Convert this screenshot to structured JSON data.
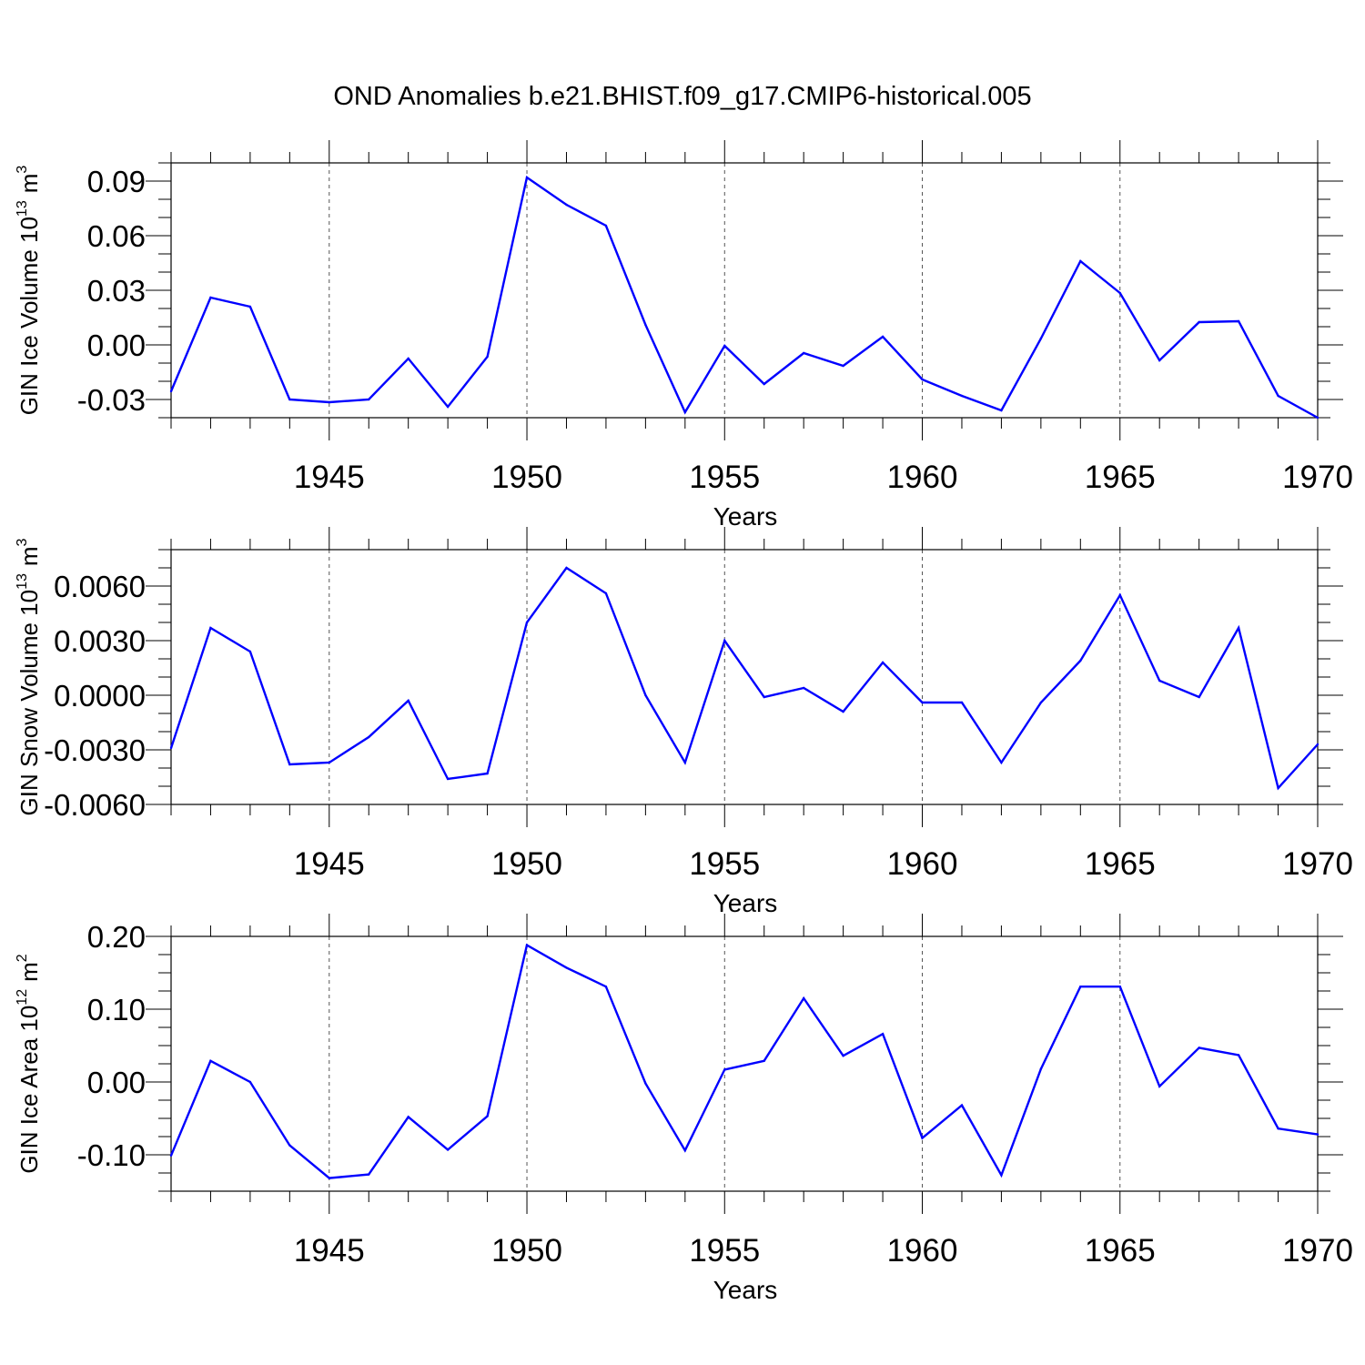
{
  "title": "OND Anomalies b.e21.BHIST.f09_g17.CMIP6-historical.005",
  "colors": {
    "line": "#0000ff",
    "axis": "#000000",
    "grid": "#555555",
    "background": "#ffffff"
  },
  "chart_data": [
    {
      "type": "line",
      "ylabel": "GIN Ice Volume 10",
      "ylabel_exp": "13",
      "ylabel_unit": "m",
      "ylabel_unit_exp": "3",
      "xlabel": "Years",
      "xlim": [
        1941,
        1970
      ],
      "ylim": [
        -0.04,
        0.1
      ],
      "yticks": [
        -0.03,
        0.0,
        0.03,
        0.06,
        0.09
      ],
      "ytick_labels": [
        "-0.03",
        "0.00",
        "0.03",
        "0.06",
        "0.09"
      ],
      "xticks": [
        1945,
        1950,
        1955,
        1960,
        1965,
        1970
      ],
      "xtick_labels": [
        "1945",
        "1950",
        "1955",
        "1960",
        "1965",
        "1970"
      ],
      "grid": "dashed vertical at major x ticks",
      "x": [
        1941,
        1942,
        1943,
        1944,
        1945,
        1946,
        1947,
        1948,
        1949,
        1950,
        1951,
        1952,
        1953,
        1954,
        1955,
        1956,
        1957,
        1958,
        1959,
        1960,
        1961,
        1962,
        1963,
        1964,
        1965,
        1966,
        1967,
        1968,
        1969,
        1970
      ],
      "series": [
        {
          "name": "GIN Ice Volume",
          "values": [
            -0.0255,
            0.026,
            0.021,
            -0.03,
            -0.0315,
            -0.03,
            -0.0075,
            -0.034,
            -0.0065,
            0.092,
            0.077,
            0.0655,
            0.011,
            -0.037,
            -0.0005,
            -0.0215,
            -0.0045,
            -0.0115,
            0.0045,
            -0.019,
            -0.028,
            -0.036,
            0.0035,
            0.046,
            0.0285,
            -0.0085,
            0.0125,
            0.013,
            -0.028,
            -0.04
          ]
        }
      ]
    },
    {
      "type": "line",
      "ylabel": "GIN Snow Volume 10",
      "ylabel_exp": "13",
      "ylabel_unit": "m",
      "ylabel_unit_exp": "3",
      "xlabel": "Years",
      "xlim": [
        1941,
        1970
      ],
      "ylim": [
        -0.006,
        0.008
      ],
      "yticks": [
        -0.006,
        -0.003,
        0.0,
        0.003,
        0.006
      ],
      "ytick_labels": [
        "-0.0060",
        "-0.0030",
        "0.0000",
        "0.0030",
        "0.0060"
      ],
      "xticks": [
        1945,
        1950,
        1955,
        1960,
        1965,
        1970
      ],
      "xtick_labels": [
        "1945",
        "1950",
        "1955",
        "1960",
        "1965",
        "1970"
      ],
      "grid": "dashed vertical at major x ticks",
      "x": [
        1941,
        1942,
        1943,
        1944,
        1945,
        1946,
        1947,
        1948,
        1949,
        1950,
        1951,
        1952,
        1953,
        1954,
        1955,
        1956,
        1957,
        1958,
        1959,
        1960,
        1961,
        1962,
        1963,
        1964,
        1965,
        1966,
        1967,
        1968,
        1969,
        1970
      ],
      "series": [
        {
          "name": "GIN Snow Volume",
          "values": [
            -0.0029,
            0.0037,
            0.0024,
            -0.0038,
            -0.0037,
            -0.0023,
            -0.0003,
            -0.0046,
            -0.0043,
            0.004,
            0.007,
            0.0056,
            0.0,
            -0.0037,
            0.003,
            -0.0001,
            0.0004,
            -0.0009,
            0.0018,
            -0.0004,
            -0.0004,
            -0.0037,
            -0.0004,
            0.0019,
            0.0055,
            0.0008,
            -0.0001,
            0.0037,
            -0.0051,
            -0.0027
          ]
        }
      ]
    },
    {
      "type": "line",
      "ylabel": "GIN Ice Area 10",
      "ylabel_exp": "12",
      "ylabel_unit": "m",
      "ylabel_unit_exp": "2",
      "xlabel": "Years",
      "xlim": [
        1941,
        1970
      ],
      "ylim": [
        -0.15,
        0.2
      ],
      "yticks": [
        -0.1,
        0.0,
        0.1,
        0.2
      ],
      "ytick_labels": [
        "-0.10",
        "0.00",
        "0.10",
        "0.20"
      ],
      "xticks": [
        1945,
        1950,
        1955,
        1960,
        1965,
        1970
      ],
      "xtick_labels": [
        "1945",
        "1950",
        "1955",
        "1960",
        "1965",
        "1970"
      ],
      "grid": "dashed vertical at major x ticks",
      "x": [
        1941,
        1942,
        1943,
        1944,
        1945,
        1946,
        1947,
        1948,
        1949,
        1950,
        1951,
        1952,
        1953,
        1954,
        1955,
        1956,
        1957,
        1958,
        1959,
        1960,
        1961,
        1962,
        1963,
        1964,
        1965,
        1966,
        1967,
        1968,
        1969,
        1970
      ],
      "series": [
        {
          "name": "GIN Ice Area",
          "values": [
            -0.101,
            0.029,
            0.0,
            -0.087,
            -0.132,
            -0.127,
            -0.048,
            -0.093,
            -0.047,
            0.188,
            0.157,
            0.131,
            -0.002,
            -0.094,
            0.017,
            0.029,
            0.115,
            0.036,
            0.066,
            -0.077,
            -0.032,
            -0.128,
            0.018,
            0.131,
            0.131,
            -0.006,
            0.047,
            0.037,
            -0.064,
            -0.072
          ]
        }
      ]
    }
  ]
}
